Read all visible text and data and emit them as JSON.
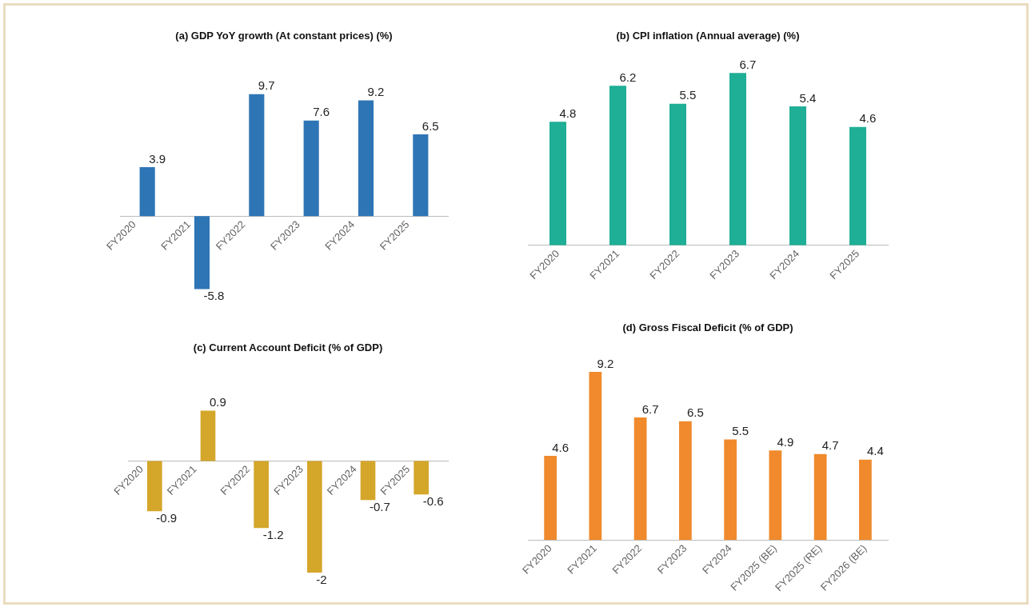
{
  "chart_data": [
    {
      "type": "bar",
      "title": "(a) GDP YoY growth (At constant prices) (%)",
      "categories": [
        "FY2020",
        "FY2021",
        "FY2022",
        "FY2023",
        "FY2024",
        "FY2025"
      ],
      "values": [
        3.9,
        -5.8,
        9.7,
        7.6,
        9.2,
        6.5
      ],
      "color": "#2e75b6",
      "data_labels": true,
      "tick_labels": "x"
    },
    {
      "type": "bar",
      "title": "(b) CPI inflation (Annual average) (%)",
      "categories": [
        "FY2020",
        "FY2021",
        "FY2022",
        "FY2023",
        "FY2024",
        "FY2025"
      ],
      "values": [
        4.8,
        6.2,
        5.5,
        6.7,
        5.4,
        4.6
      ],
      "color": "#1fae96",
      "data_labels": true,
      "tick_labels": "x"
    },
    {
      "type": "bar",
      "title": "(c) Current Account Deficit (% of GDP)",
      "categories": [
        "FY2020",
        "FY2021",
        "FY2022",
        "FY2023",
        "FY2024",
        "FY2025"
      ],
      "values": [
        -0.9,
        0.9,
        -1.2,
        -2,
        -0.7,
        -0.6
      ],
      "color": "#d4a62a",
      "data_labels": true,
      "tick_labels": "x"
    },
    {
      "type": "bar",
      "title": "(d) Gross Fiscal Deficit (% of GDP)",
      "categories": [
        "FY2020",
        "FY2021",
        "FY2022",
        "FY2023",
        "FY2024",
        "FY2025 (BE)",
        "FY2025 (RE)",
        "FY2026 (BE)"
      ],
      "values": [
        4.6,
        9.2,
        6.7,
        6.5,
        5.5,
        4.9,
        4.7,
        4.4
      ],
      "color": "#f08a2c",
      "data_labels": true,
      "tick_labels": "x"
    }
  ]
}
